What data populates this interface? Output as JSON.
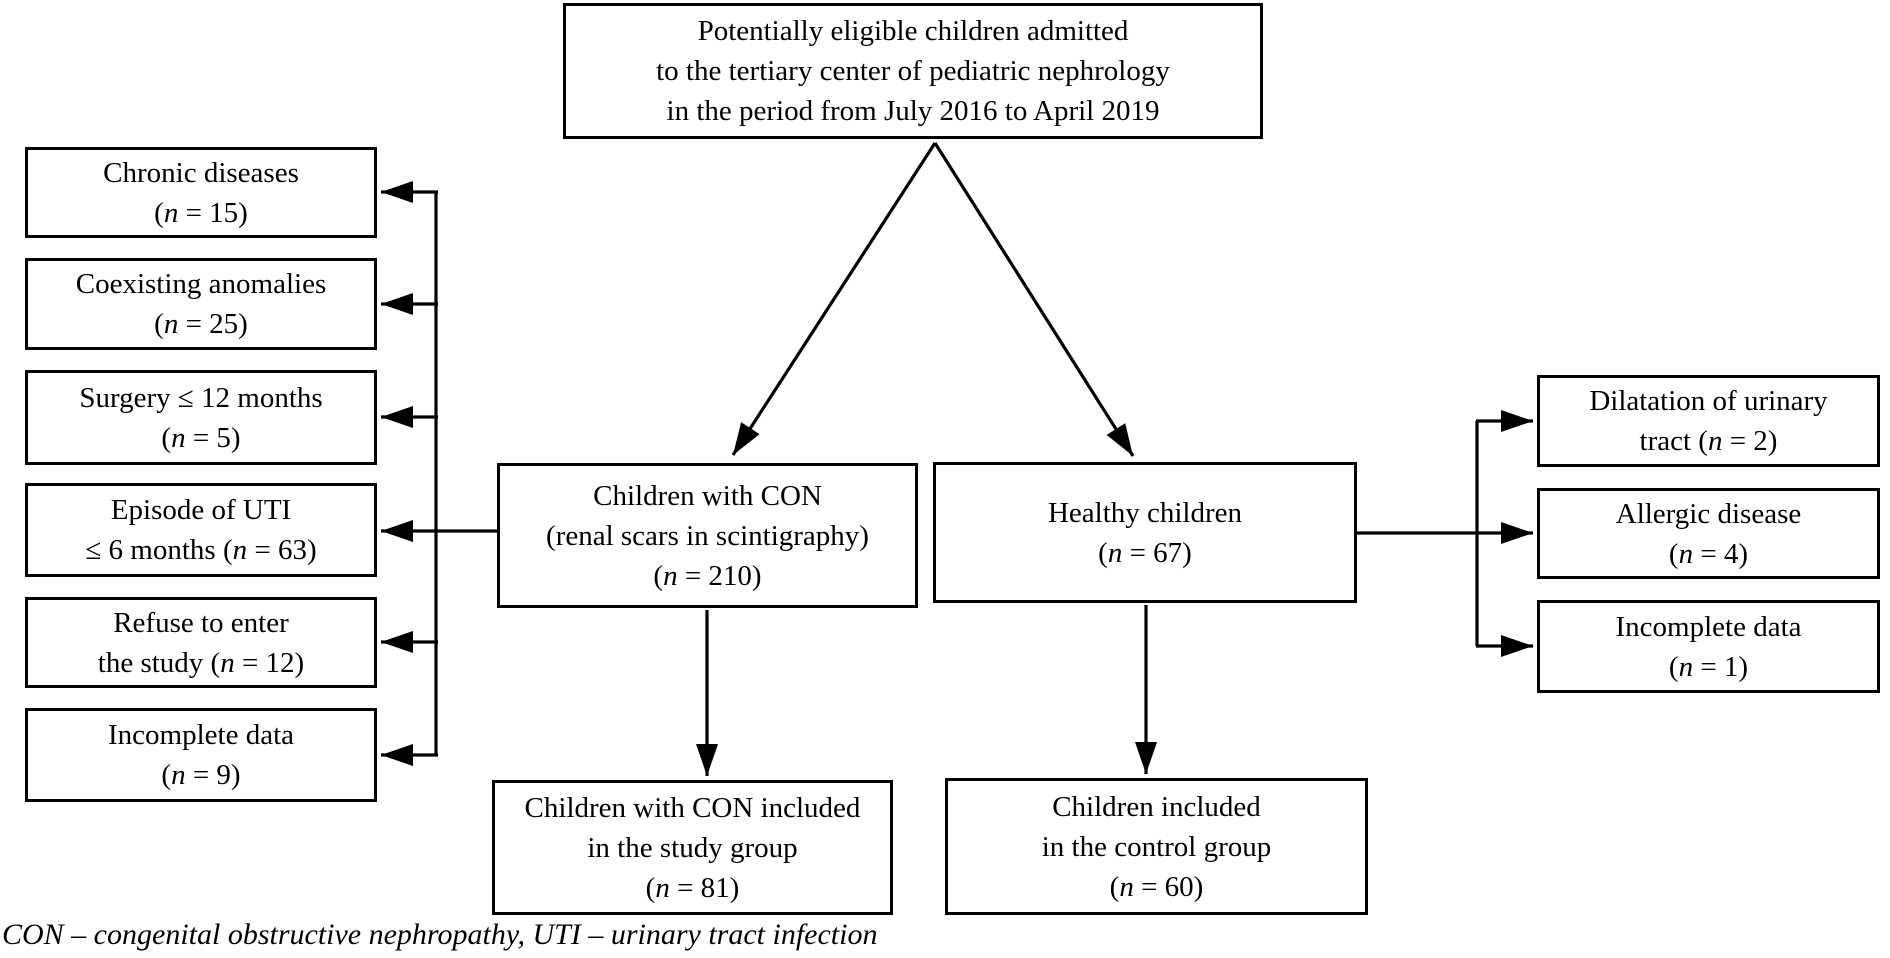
{
  "diagram": {
    "background_color": "#ffffff",
    "line_color": "#000000",
    "nodes": {
      "top": {
        "lines": [
          "Potentially eligible children admitted",
          "to the tertiary center of pediatric nephrology",
          "in the period from July 2016 to April 2019"
        ]
      },
      "left_1": {
        "lines": [
          "Chronic diseases",
          "(*n* = 15)"
        ]
      },
      "left_2": {
        "lines": [
          "Coexisting anomalies",
          "(*n* = 25)"
        ]
      },
      "left_3": {
        "lines": [
          "Surgery ≤ 12 months",
          "(*n* = 5)"
        ]
      },
      "left_4": {
        "lines": [
          "Episode of UTI",
          "≤ 6 months (*n* = 63)"
        ]
      },
      "left_5": {
        "lines": [
          "Refuse to enter",
          "the study (*n* = 12)"
        ]
      },
      "left_6": {
        "lines": [
          "Incomplete data",
          "(*n* = 9)"
        ]
      },
      "con_group": {
        "lines": [
          "Children with CON",
          "(renal scars in scintigraphy)",
          "(*n* = 210)"
        ]
      },
      "healthy_group": {
        "lines": [
          "Healthy children",
          "(*n* = 67)"
        ]
      },
      "study_group": {
        "lines": [
          "Children with CON included",
          "in the study group",
          "(*n* = 81)"
        ]
      },
      "control_group": {
        "lines": [
          "Children included",
          "in the control group",
          "(*n* = 60)"
        ]
      },
      "right_1": {
        "lines": [
          "Dilatation of urinary",
          "tract (*n* = 2)"
        ]
      },
      "right_2": {
        "lines": [
          "Allergic disease",
          "(*n* = 4)"
        ]
      },
      "right_3": {
        "lines": [
          "Incomplete data",
          "(*n* = 1)"
        ]
      }
    },
    "footnote": "CON – congenital obstructive nephropathy, UTI – urinary tract infection"
  }
}
